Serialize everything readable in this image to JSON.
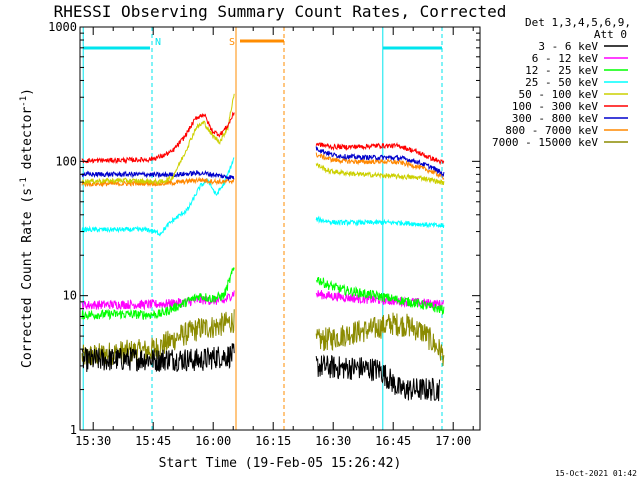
{
  "chart_data": {
    "type": "line",
    "title": "RHESSI Observing Summary Count Rates, Corrected",
    "xlabel": "Start Time (19-Feb-05 15:26:42)",
    "ylabel_main": "Corrected Count Rate (s",
    "ylabel_sup1": "-1",
    "ylabel_mid": " detector",
    "ylabel_sup2": "-1",
    "ylabel_end": ")",
    "yscale": "log",
    "ylim": [
      1,
      1000
    ],
    "xlim_minutes": [
      0,
      100
    ],
    "x_ticks": [
      {
        "minute": 3.3,
        "label": "15:30"
      },
      {
        "minute": 18.3,
        "label": "15:45"
      },
      {
        "minute": 33.3,
        "label": "16:00"
      },
      {
        "minute": 48.3,
        "label": "16:15"
      },
      {
        "minute": 63.3,
        "label": "16:30"
      },
      {
        "minute": 78.3,
        "label": "16:45"
      },
      {
        "minute": 93.3,
        "label": "17:00"
      }
    ],
    "y_ticks": [
      {
        "value": 1,
        "label": "1"
      },
      {
        "value": 10,
        "label": "10"
      },
      {
        "value": 100,
        "label": "100"
      },
      {
        "value": 1000,
        "label": "1000"
      }
    ],
    "legend_header": [
      "Det 1,3,4,5,6,9,",
      "Att 0"
    ],
    "legend_position": "right",
    "timestamp": "15-Oct-2021 01:42",
    "annotations": [
      {
        "text": "N",
        "minute": 19.5,
        "color": "#00e5ee"
      },
      {
        "text": "S",
        "minute": 38.0,
        "color": "#ff8c00"
      }
    ],
    "night_lines_minutes": [
      0.8,
      18.0,
      75.7,
      90.5
    ],
    "night_bars_minutes": [
      [
        0.8,
        17.5
      ],
      [
        75.7,
        90.5
      ]
    ],
    "saa_lines_minutes": [
      39.0,
      51.0
    ],
    "saa_bar_minutes": [
      40.0,
      51.0
    ],
    "gap_minutes": [
      39.8,
      59.0
    ],
    "series": [
      {
        "name": "3 - 6 keV",
        "color": "#000000",
        "points": [
          [
            0.5,
            3.3
          ],
          [
            17,
            3.4
          ],
          [
            19,
            3.3
          ],
          [
            22,
            3.4
          ],
          [
            30,
            3.3
          ],
          [
            34,
            3.5
          ],
          [
            38.5,
            3.6
          ],
          [
            59,
            3.0
          ],
          [
            65,
            2.9
          ],
          [
            70,
            2.9
          ],
          [
            75,
            2.8
          ],
          [
            80,
            2.0
          ],
          [
            85,
            2.0
          ],
          [
            90,
            2.0
          ]
        ]
      },
      {
        "name": "6 - 12 keV",
        "color": "#ff00ff",
        "points": [
          [
            0.5,
            8.5
          ],
          [
            10,
            8.6
          ],
          [
            17,
            8.6
          ],
          [
            22,
            8.7
          ],
          [
            27,
            9.0
          ],
          [
            30,
            9.3
          ],
          [
            33,
            9.2
          ],
          [
            36,
            9.1
          ],
          [
            38.5,
            10.5
          ],
          [
            59,
            10.3
          ],
          [
            62,
            10.0
          ],
          [
            68,
            9.6
          ],
          [
            74,
            9.3
          ],
          [
            80,
            9.1
          ],
          [
            86,
            8.8
          ],
          [
            91,
            8.6
          ]
        ]
      },
      {
        "name": "12 - 25 keV",
        "color": "#00ff00",
        "points": [
          [
            0.5,
            7.2
          ],
          [
            10,
            7.3
          ],
          [
            17,
            7.2
          ],
          [
            20,
            7.3
          ],
          [
            25,
            8.5
          ],
          [
            30,
            10.0
          ],
          [
            33,
            9.5
          ],
          [
            36,
            10.0
          ],
          [
            38.5,
            16.0
          ],
          [
            59,
            13.5
          ],
          [
            62,
            12.0
          ],
          [
            66,
            11.0
          ],
          [
            70,
            10.5
          ],
          [
            74,
            10.0
          ],
          [
            78,
            9.5
          ],
          [
            84,
            8.8
          ],
          [
            88,
            8.2
          ],
          [
            91,
            7.8
          ]
        ]
      },
      {
        "name": "25 - 50 keV",
        "color": "#00ffff",
        "points": [
          [
            0.5,
            31
          ],
          [
            10,
            31
          ],
          [
            17,
            31
          ],
          [
            20,
            29
          ],
          [
            23,
            36
          ],
          [
            27,
            44
          ],
          [
            30,
            65
          ],
          [
            32,
            73
          ],
          [
            34,
            56
          ],
          [
            36,
            68
          ],
          [
            38.5,
            105
          ],
          [
            59,
            37
          ],
          [
            64,
            35
          ],
          [
            70,
            35
          ],
          [
            75,
            35
          ],
          [
            80,
            35
          ],
          [
            85,
            34
          ],
          [
            91,
            33
          ]
        ]
      },
      {
        "name": "50 - 100 keV",
        "color": "#ccd000",
        "points": [
          [
            0.5,
            71
          ],
          [
            10,
            72
          ],
          [
            17,
            71
          ],
          [
            20,
            70
          ],
          [
            23,
            75
          ],
          [
            26,
            112
          ],
          [
            29,
            178
          ],
          [
            31,
            195
          ],
          [
            33,
            156
          ],
          [
            35,
            140
          ],
          [
            37,
            180
          ],
          [
            38.5,
            320
          ],
          [
            59,
            95
          ],
          [
            62,
            85
          ],
          [
            66,
            82
          ],
          [
            70,
            80
          ],
          [
            74,
            79
          ],
          [
            80,
            77
          ],
          [
            86,
            75
          ],
          [
            91,
            69
          ]
        ]
      },
      {
        "name": "100 - 300 keV",
        "color": "#ff0000",
        "points": [
          [
            0.5,
            101
          ],
          [
            10,
            102
          ],
          [
            17,
            103
          ],
          [
            20,
            108
          ],
          [
            23,
            118
          ],
          [
            26,
            150
          ],
          [
            29,
            210
          ],
          [
            31,
            225
          ],
          [
            33,
            168
          ],
          [
            35,
            158
          ],
          [
            37,
            185
          ],
          [
            38.5,
            230
          ],
          [
            59,
            135
          ],
          [
            63,
            128
          ],
          [
            67,
            128
          ],
          [
            71,
            129
          ],
          [
            75,
            131
          ],
          [
            80,
            130
          ],
          [
            84,
            118
          ],
          [
            88,
            105
          ],
          [
            91,
            97
          ]
        ]
      },
      {
        "name": "300 - 800 keV",
        "color": "#0000cc",
        "points": [
          [
            0.5,
            80
          ],
          [
            10,
            80
          ],
          [
            17,
            80
          ],
          [
            20,
            79
          ],
          [
            25,
            80
          ],
          [
            30,
            82
          ],
          [
            33,
            80
          ],
          [
            36,
            77
          ],
          [
            38.5,
            76
          ],
          [
            59,
            125
          ],
          [
            63,
            112
          ],
          [
            67,
            108
          ],
          [
            71,
            107
          ],
          [
            75,
            107
          ],
          [
            80,
            106
          ],
          [
            84,
            100
          ],
          [
            88,
            90
          ],
          [
            91,
            80
          ]
        ]
      },
      {
        "name": "800 - 7000 keV",
        "color": "#ff8800",
        "points": [
          [
            0.5,
            68
          ],
          [
            10,
            68
          ],
          [
            17,
            69
          ],
          [
            20,
            68
          ],
          [
            25,
            70
          ],
          [
            30,
            73
          ],
          [
            33,
            71
          ],
          [
            36,
            70
          ],
          [
            38.5,
            72
          ],
          [
            59,
            112
          ],
          [
            63,
            103
          ],
          [
            67,
            100
          ],
          [
            71,
            99
          ],
          [
            75,
            100
          ],
          [
            80,
            98
          ],
          [
            84,
            92
          ],
          [
            88,
            84
          ],
          [
            91,
            76
          ]
        ]
      },
      {
        "name": "7000 - 15000 keV",
        "color": "#8b8b00",
        "points": [
          [
            0.5,
            3.5
          ],
          [
            10,
            3.8
          ],
          [
            17,
            3.9
          ],
          [
            20,
            4.2
          ],
          [
            25,
            5.0
          ],
          [
            30,
            5.7
          ],
          [
            34,
            5.9
          ],
          [
            38.5,
            6.5
          ],
          [
            59,
            4.6
          ],
          [
            63,
            4.8
          ],
          [
            68,
            5.3
          ],
          [
            73,
            5.6
          ],
          [
            78,
            6.2
          ],
          [
            82,
            6.0
          ],
          [
            86,
            5.3
          ],
          [
            91,
            3.6
          ]
        ]
      }
    ]
  }
}
